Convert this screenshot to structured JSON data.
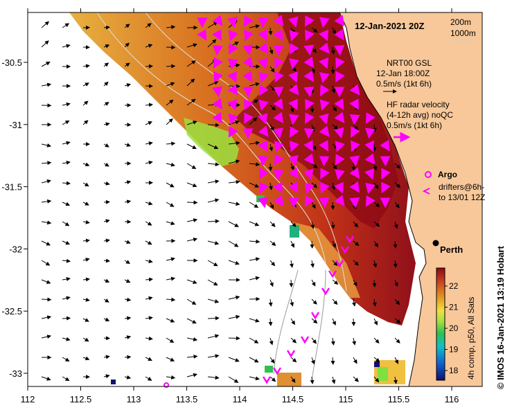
{
  "map": {
    "date_title": "12-Jan-2021 20Z",
    "depth_legend": [
      "200m",
      "1000m"
    ],
    "model_label": [
      "NRT00 GSL",
      "12-Jan 18:00Z",
      "0.5m/s (1kt 6h)"
    ],
    "radar_label": [
      "HF radar velocity",
      "(4-12h avg) noQC",
      "0.5m/s (1kt 6h)"
    ],
    "argo_label": "Argo",
    "drifter_label": [
      "drifters@6h-",
      "to 13/01 12Z"
    ],
    "city": "Perth",
    "credit": "© IMOS 16-Jan-2021 13:19 Hobart",
    "colorbar_caption": "4h comp, p50, All Sats",
    "colorbar_ticks": [
      "22",
      "21",
      "20",
      "19",
      "18"
    ],
    "lon_ticks": [
      "112",
      "112.5",
      "113",
      "113.5",
      "114",
      "114.5",
      "115",
      "115.5",
      "116"
    ],
    "lat_ticks": [
      "-30.5",
      "-31",
      "-31.5",
      "-32",
      "-32.5",
      "-33"
    ],
    "colors": {
      "land": "#f8c89a",
      "ocean": "#ffffff",
      "arrow_model": "#000000",
      "arrow_radar": "#ff00ff",
      "sst_warm": "#c8321e",
      "sst_hot": "#8c0a14",
      "sst_mid": "#e0a030",
      "sst_cool": "#70d030"
    }
  }
}
